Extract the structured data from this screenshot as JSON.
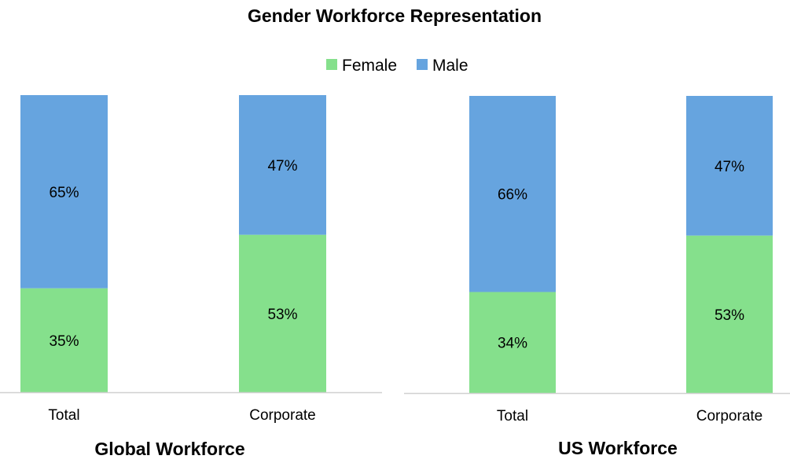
{
  "chart_data": {
    "type": "bar",
    "stacked": true,
    "percent": true,
    "title": "Gender Workforce Representation",
    "legend": {
      "position": "top",
      "entries": [
        "Female",
        "Male"
      ]
    },
    "colors": {
      "Female": "#85e08c",
      "Male": "#66a4df",
      "axis": "#d0d0d0"
    },
    "ylim": [
      0,
      100
    ],
    "grid": false,
    "panels": [
      {
        "title": "Global Workforce",
        "categories": [
          "Total",
          "Corporate"
        ],
        "series": [
          {
            "name": "Female",
            "values": [
              35,
              53
            ],
            "labels": [
              "35%",
              "53%"
            ]
          },
          {
            "name": "Male",
            "values": [
              65,
              47
            ],
            "labels": [
              "65%",
              "47%"
            ]
          }
        ]
      },
      {
        "title": "US Workforce",
        "categories": [
          "Total",
          "Corporate"
        ],
        "series": [
          {
            "name": "Female",
            "values": [
              34,
              53
            ],
            "labels": [
              "34%",
              "53%"
            ]
          },
          {
            "name": "Male",
            "values": [
              66,
              47
            ],
            "labels": [
              "66%",
              "47%"
            ]
          }
        ]
      }
    ]
  }
}
